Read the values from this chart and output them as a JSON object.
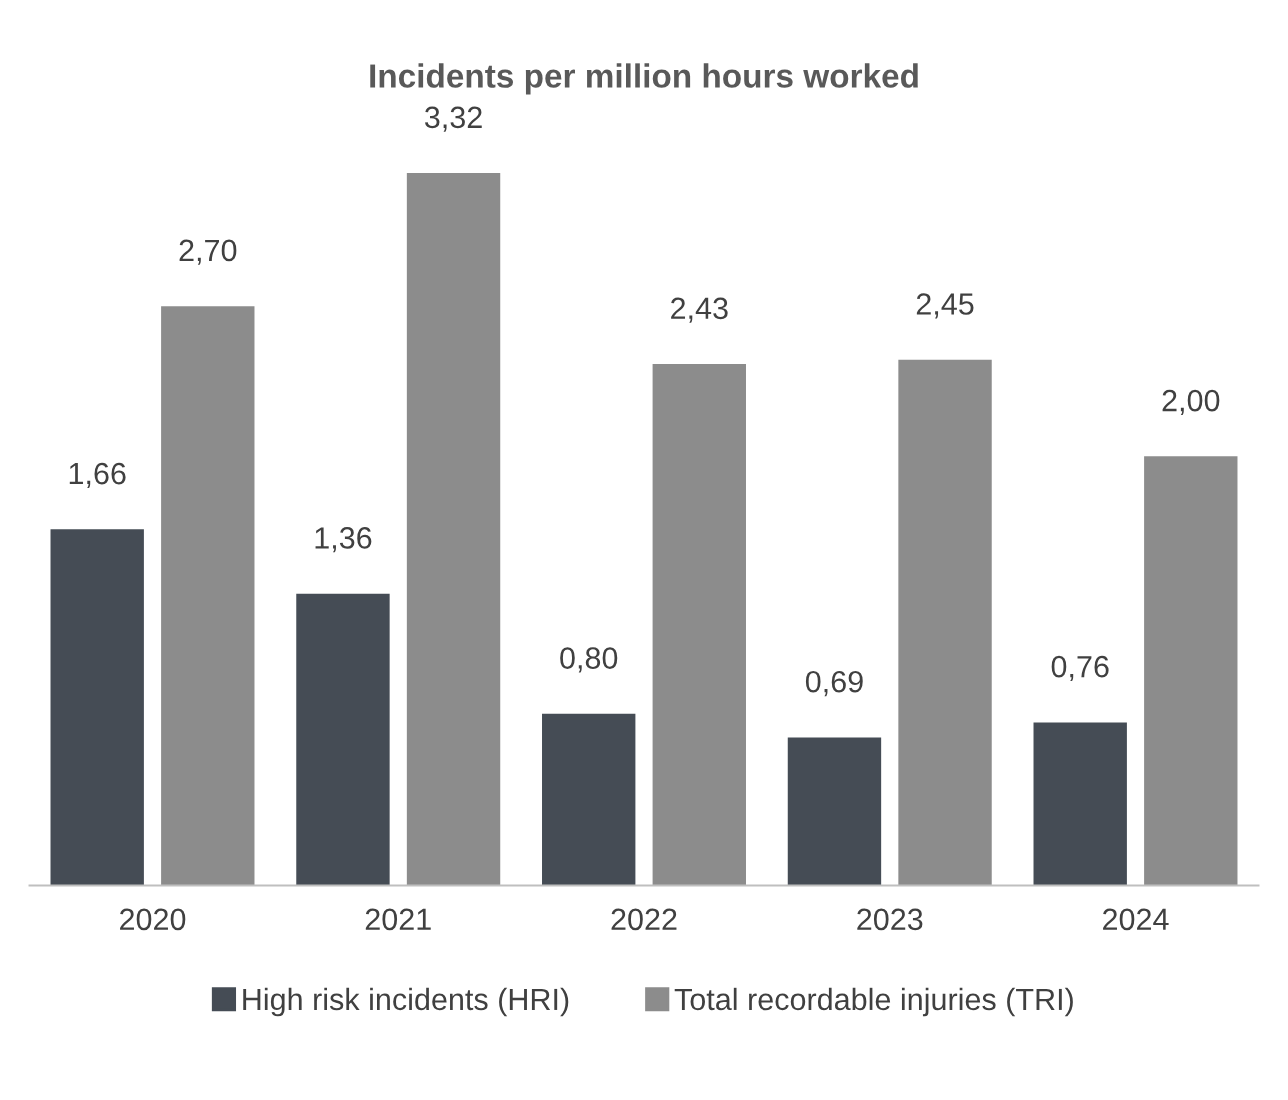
{
  "chart_data": {
    "type": "bar",
    "title": "Incidents per million hours worked",
    "categories": [
      "2020",
      "2021",
      "2022",
      "2023",
      "2024"
    ],
    "series": [
      {
        "name": "High risk incidents (HRI)",
        "color": "#454c55",
        "values": [
          1.66,
          1.36,
          0.8,
          0.69,
          0.76
        ],
        "value_labels": [
          "1,66",
          "1,36",
          "0,80",
          "0,69",
          "0,76"
        ]
      },
      {
        "name": "Total recordable injuries (TRI)",
        "color": "#8c8c8c",
        "values": [
          2.7,
          3.32,
          2.43,
          2.45,
          2.0
        ],
        "value_labels": [
          "2,70",
          "3,32",
          "2,43",
          "2,45",
          "2,00"
        ]
      }
    ],
    "legend": "bottom",
    "grid": false,
    "tick_labels": "x"
  }
}
